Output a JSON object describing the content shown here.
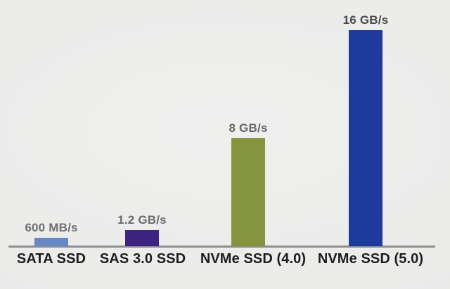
{
  "chart_data": {
    "type": "bar",
    "title": "",
    "categories": [
      "SATA SSD",
      "SAS 3.0 SSD",
      "NVMe SSD (4.0)",
      "NVMe SSD (5.0)"
    ],
    "values": [
      0.6,
      1.2,
      8,
      16
    ],
    "value_labels": [
      "600 MB/s",
      "1.2 GB/s",
      "8 GB/s",
      "16 GB/s"
    ],
    "unit": "GB/s",
    "xlabel": "",
    "ylabel": "",
    "ylim": [
      0,
      16
    ],
    "grid": false,
    "legend": false,
    "bar_colors": [
      "#6589c5",
      "#3f2381",
      "#85953f",
      "#1e3a9c"
    ],
    "value_label_colors": [
      "#707070",
      "#6b6b6b",
      "#676767",
      "#4a4a4a"
    ],
    "category_label_color": "#1d1d1d",
    "axis_line_color": "#8e8e8e",
    "background_color": "#ececec"
  }
}
